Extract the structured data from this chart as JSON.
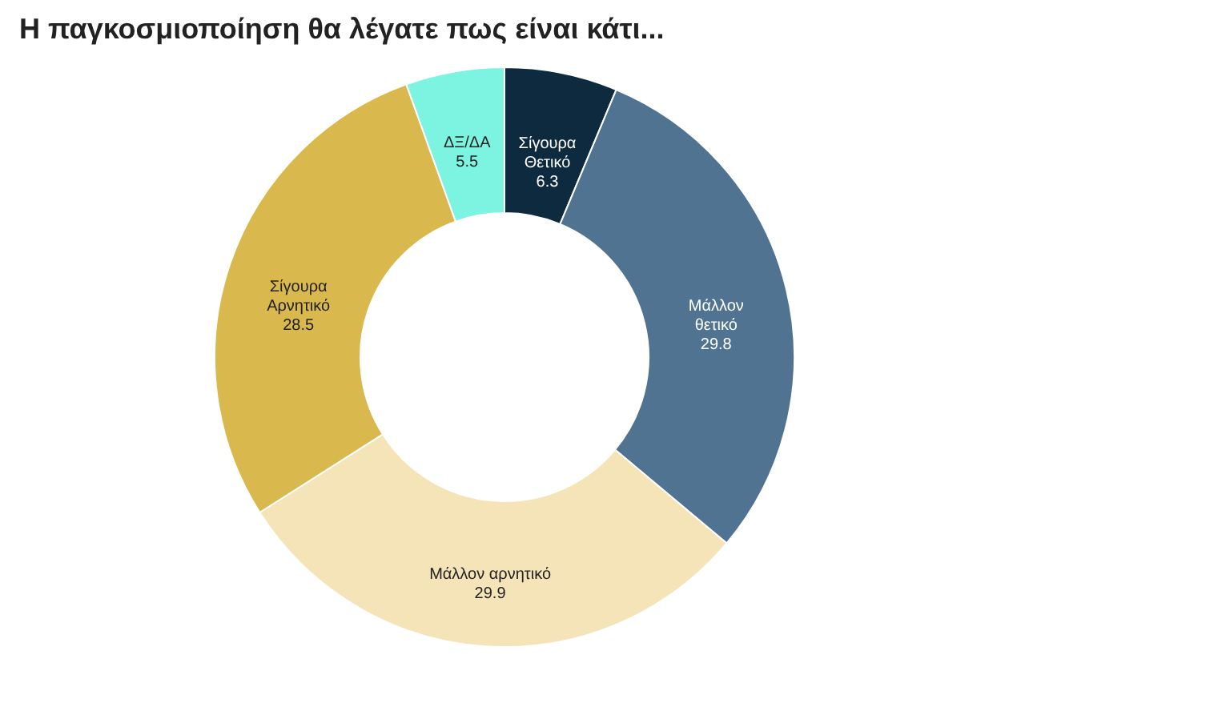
{
  "chart_data": {
    "type": "donut",
    "title": "Η παγκοσμιοποίηση θα λέγατε πως είναι κάτι...",
    "categories": [
      "Σίγουρα Θετικό",
      "Μάλλον θετικό",
      "Μάλλον αρνητικό",
      "Σίγουρα Αρνητικό",
      "ΔΞ/ΔΑ"
    ],
    "values": [
      6.3,
      29.8,
      29.9,
      28.5,
      5.5
    ],
    "colors": [
      "#0e2a3f",
      "#4f7391",
      "#f5e4b8",
      "#d9b84e",
      "#7df4e2"
    ],
    "data_labels": true,
    "legend": false
  }
}
